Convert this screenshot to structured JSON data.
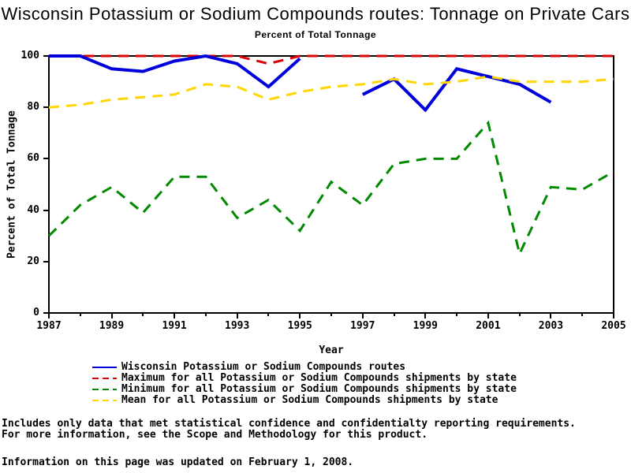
{
  "page": {
    "title": "Wisconsin Potassium or Sodium Compounds routes: Tonnage on Private Cars",
    "subtitle": "Percent of Total Tonnage"
  },
  "axes": {
    "x_label": "Year",
    "y_label": "Percent of Total Tonnage",
    "x_major_ticks": [
      "1987",
      "1989",
      "1991",
      "1993",
      "1995",
      "1997",
      "1999",
      "2001",
      "2003",
      "2005"
    ],
    "x_minor_ticks": [
      1988,
      1990,
      1992,
      1994,
      1996,
      1998,
      2000,
      2002,
      2004
    ],
    "y_ticks": [
      "100",
      "80",
      "60",
      "40",
      "20",
      "0"
    ]
  },
  "chart_data": {
    "type": "line",
    "title": "Wisconsin Potassium or Sodium Compounds routes: Tonnage on Private Cars",
    "subtitle": "Percent of Total Tonnage",
    "xlabel": "Year",
    "ylabel": "Percent of Total Tonnage",
    "xlim": [
      1987,
      2005
    ],
    "ylim": [
      0,
      100
    ],
    "grid": false,
    "legend_position": "bottom",
    "x": [
      1987,
      1988,
      1989,
      1990,
      1991,
      1992,
      1993,
      1994,
      1995,
      1996,
      1997,
      1998,
      1999,
      2000,
      2001,
      2002,
      2003,
      2004,
      2005
    ],
    "series": [
      {
        "name": "Wisconsin Potassium or Sodium Compounds routes",
        "color": "#0000dd",
        "style": "solid",
        "width": 4,
        "values": [
          100,
          100,
          95,
          94,
          98,
          100,
          97,
          88,
          99,
          null,
          85,
          91,
          79,
          95,
          92,
          89,
          82,
          null,
          null
        ]
      },
      {
        "name": "Maximum for all Potassium or Sodium Compounds shipments by state",
        "color": "#dd0000",
        "style": "dashed",
        "width": 3,
        "values": [
          100,
          100,
          100,
          100,
          100,
          100,
          100,
          97,
          100,
          100,
          100,
          100,
          100,
          100,
          100,
          100,
          100,
          100,
          100
        ]
      },
      {
        "name": "Minimum for all Potassium or Sodium Compounds shipments by state",
        "color": "#008a00",
        "style": "dashed",
        "width": 3,
        "values": [
          30,
          42,
          49,
          39,
          53,
          53,
          37,
          44,
          32,
          51,
          42,
          58,
          60,
          60,
          74,
          23,
          49,
          48,
          55
        ]
      },
      {
        "name": "Mean for all Potassium or Sodium Compounds shipments by state",
        "color": "#ffd700",
        "style": "dashed",
        "width": 3,
        "values": [
          80,
          81,
          83,
          84,
          85,
          89,
          88,
          83,
          86,
          88,
          89,
          91,
          89,
          90,
          92,
          90,
          90,
          90,
          91
        ]
      }
    ]
  },
  "legend": {
    "items": [
      {
        "label": "Wisconsin Potassium or Sodium Compounds routes",
        "color": "#0000dd",
        "style": "solid"
      },
      {
        "label": "Maximum for all Potassium or Sodium Compounds shipments by state",
        "color": "#dd0000",
        "style": "dashed"
      },
      {
        "label": "Minimum for all Potassium or Sodium Compounds shipments by state",
        "color": "#008a00",
        "style": "dashed"
      },
      {
        "label": "Mean for all Potassium or Sodium Compounds shipments by state",
        "color": "#ffd700",
        "style": "dashed"
      }
    ]
  },
  "footer": {
    "note_line1": "Includes only data that met statistical confidence and confidentialty reporting requirements.",
    "note_line2": "For more information, see the Scope and Methodology for this product.",
    "updated": "Information on this page was updated on February 1, 2008."
  }
}
